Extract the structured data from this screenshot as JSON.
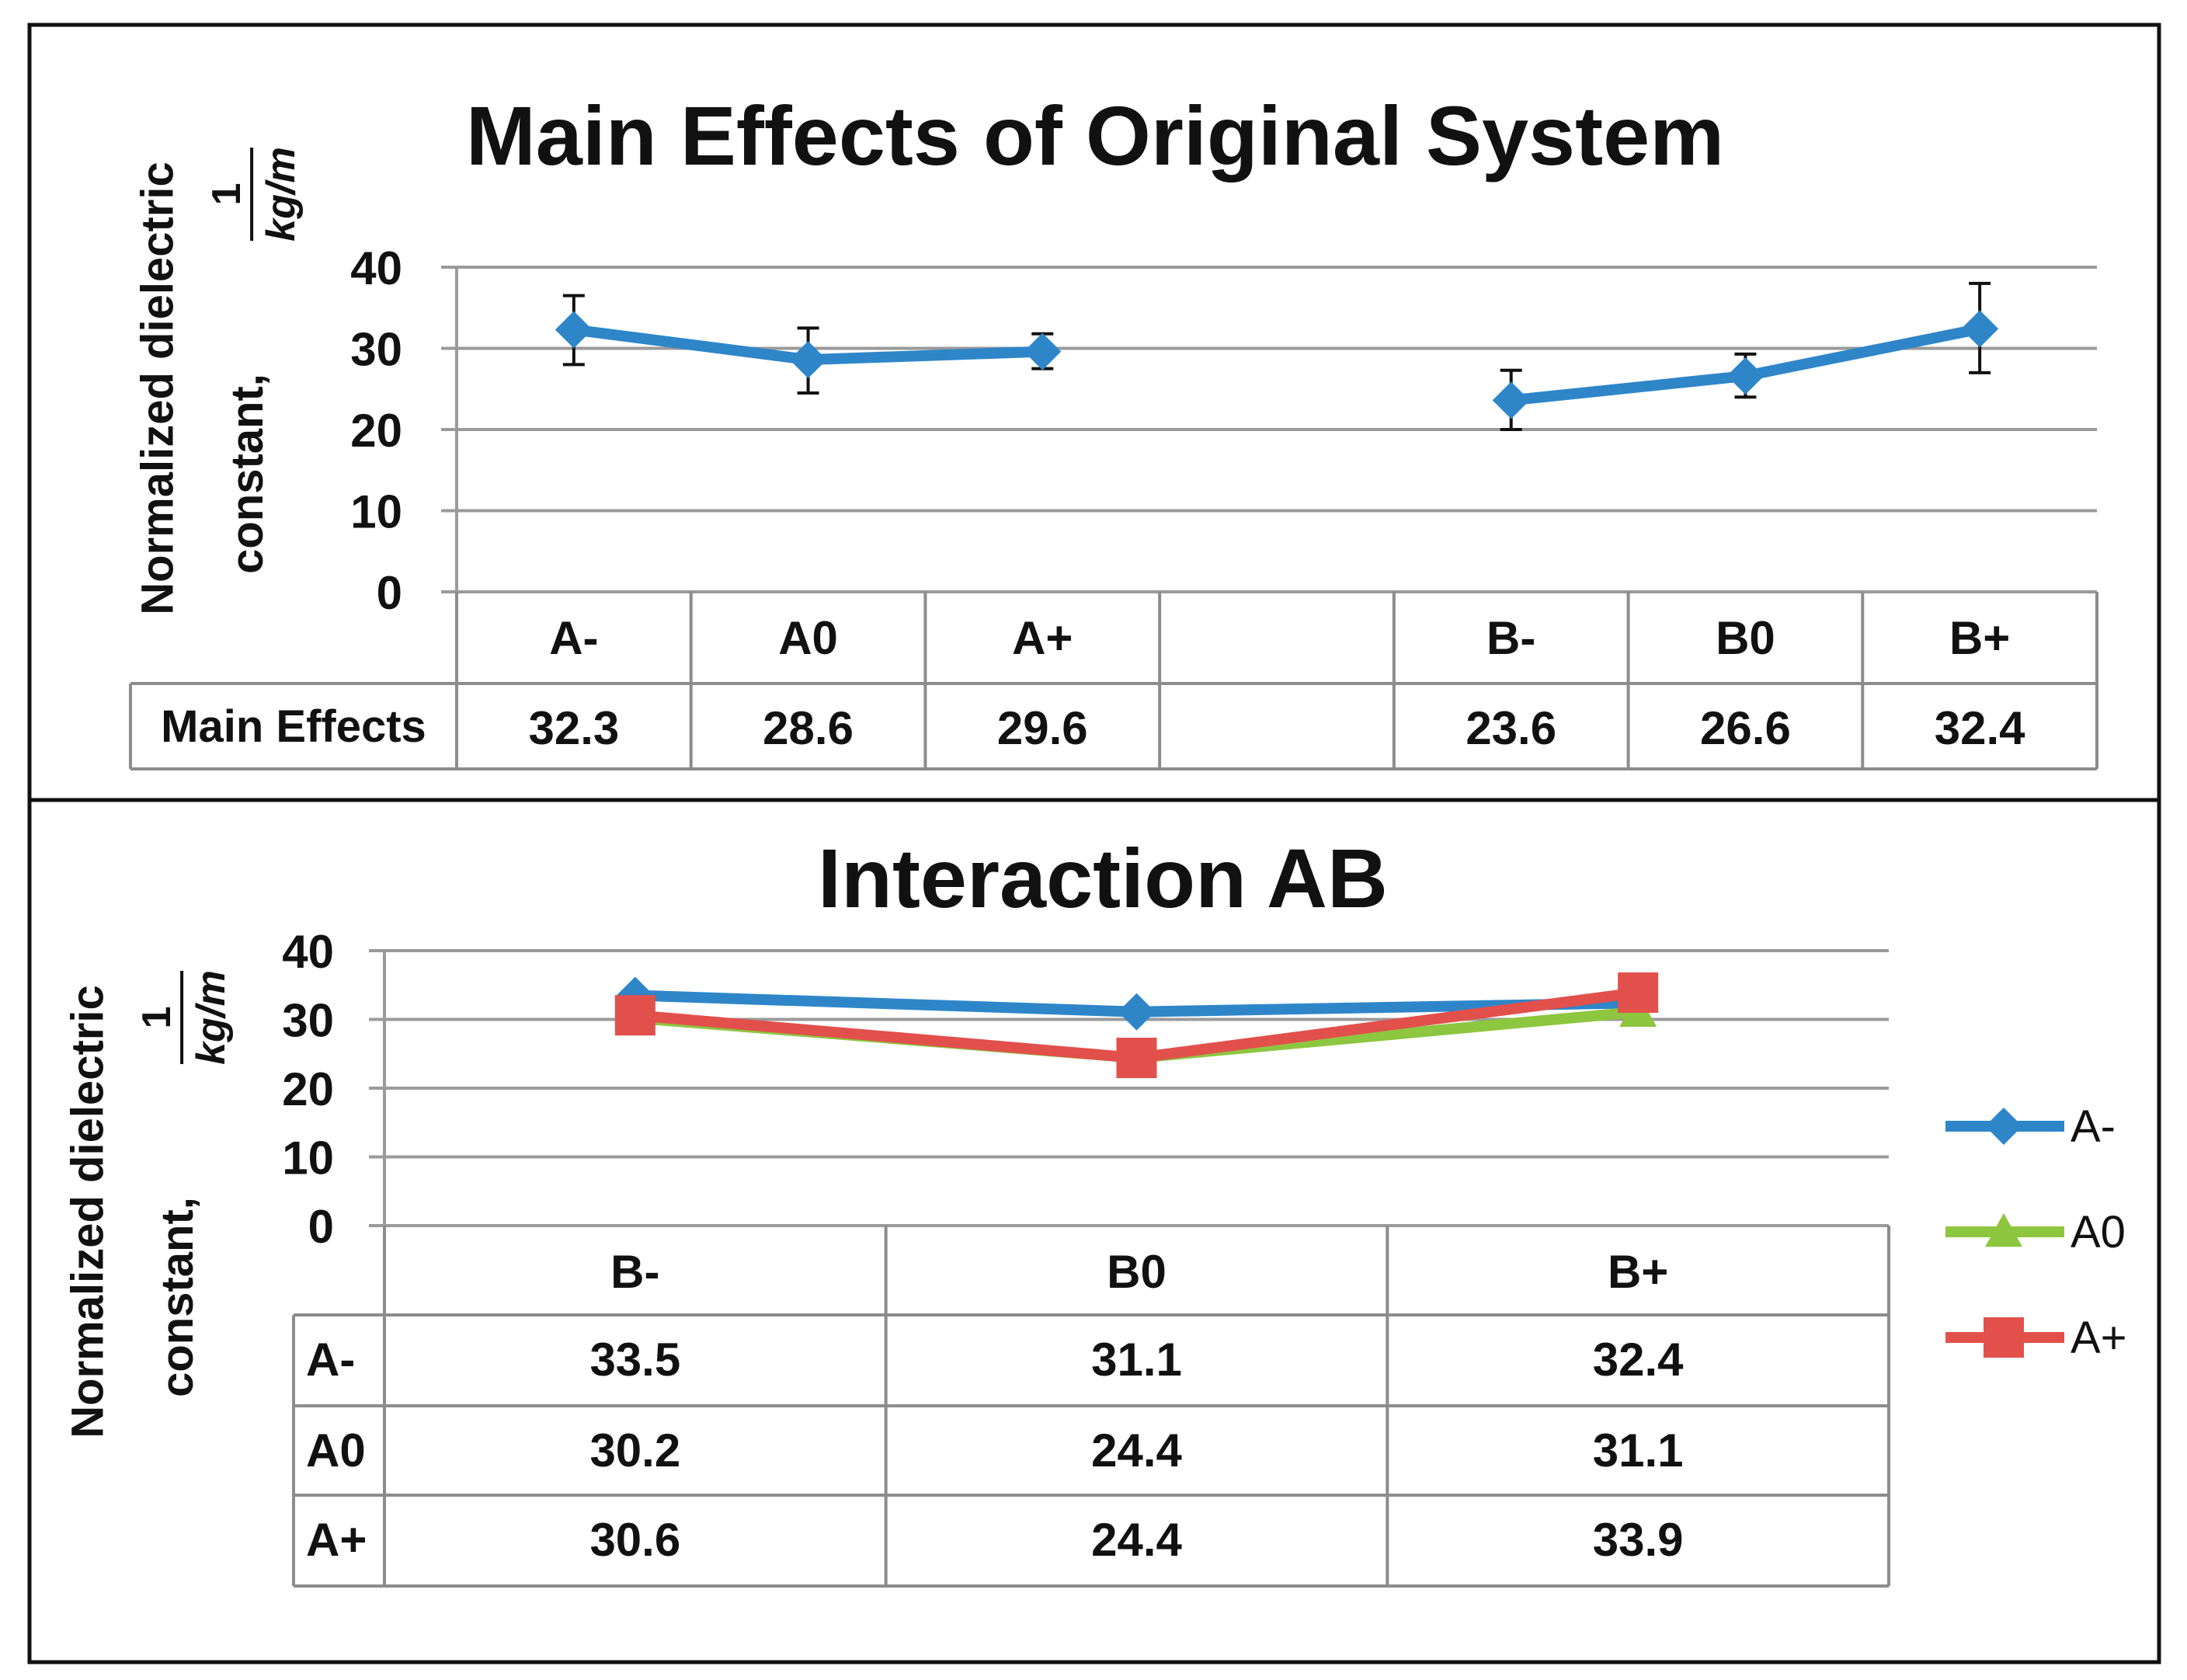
{
  "chart_data": [
    {
      "type": "line",
      "title": "Main Effects of Original System",
      "ylabel": "Normalized dielectric constant,",
      "yunit": {
        "num": "1",
        "den": "kg/m"
      },
      "ylim": [
        0,
        40
      ],
      "yticks": [
        0,
        10,
        20,
        30,
        40
      ],
      "grid": true,
      "categories": [
        "A-",
        "A0",
        "A+",
        "",
        "B-",
        "B0",
        "B+"
      ],
      "table_row_label": "Main Effects",
      "table_values": [
        "32.3",
        "28.6",
        "29.6",
        "",
        "23.6",
        "26.6",
        "32.4"
      ],
      "series": [
        {
          "name": "Main Effects",
          "color": "#2E86C9",
          "segments": [
            {
              "cat_index": [
                0,
                1,
                2
              ],
              "values": [
                32.3,
                28.6,
                29.6
              ],
              "err_low": [
                28,
                24.5,
                27.5
              ],
              "err_high": [
                36.5,
                32.5,
                31.8
              ]
            },
            {
              "cat_index": [
                4,
                5,
                6
              ],
              "values": [
                23.6,
                26.6,
                32.4
              ],
              "err_low": [
                20,
                24,
                27
              ],
              "err_high": [
                27.3,
                29.3,
                38
              ]
            }
          ]
        }
      ]
    },
    {
      "type": "line",
      "title": "Interaction AB",
      "ylabel": "Normalized dielectric constant,",
      "yunit": {
        "num": "1",
        "den": "kg/m"
      },
      "ylim": [
        0,
        40
      ],
      "yticks": [
        0,
        10,
        20,
        30,
        40
      ],
      "grid": true,
      "categories": [
        "B-",
        "B0",
        "B+"
      ],
      "legend_position": "right",
      "series": [
        {
          "name": "A-",
          "marker": "diamond",
          "color": "#2E86C9",
          "values": [
            33.5,
            31.1,
            32.4
          ],
          "labels": [
            "33.5",
            "31.1",
            "32.4"
          ]
        },
        {
          "name": "A0",
          "marker": "triangle",
          "color": "#8DC63F",
          "values": [
            30.2,
            24.4,
            31.1
          ],
          "labels": [
            "30.2",
            "24.4",
            "31.1"
          ]
        },
        {
          "name": "A+",
          "marker": "square",
          "color": "#E2504C",
          "values": [
            30.6,
            24.4,
            33.9
          ],
          "labels": [
            "30.6",
            "24.4",
            "33.9"
          ]
        }
      ]
    }
  ]
}
